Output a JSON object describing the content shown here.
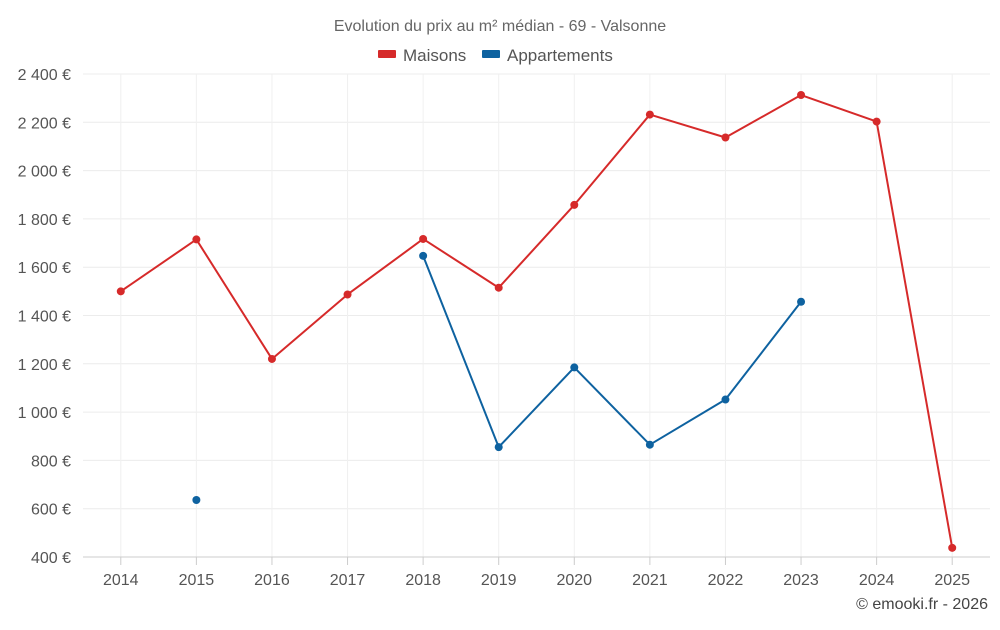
{
  "chart_data": {
    "type": "line",
    "title": "Evolution du prix au m² médian - 69 - Valsonne",
    "categories": [
      "2014",
      "2015",
      "2016",
      "2017",
      "2018",
      "2019",
      "2020",
      "2021",
      "2022",
      "2023",
      "2024",
      "2025"
    ],
    "ylim": [
      400,
      2400
    ],
    "yticks": [
      400,
      600,
      800,
      1000,
      1200,
      1400,
      1600,
      1800,
      2000,
      2200,
      2400
    ],
    "ytick_labels": [
      "400 €",
      "600 €",
      "800 €",
      "1 000 €",
      "1 200 €",
      "1 400 €",
      "1 600 €",
      "1 800 €",
      "2 000 €",
      "2 200 €",
      "2 400 €"
    ],
    "grid": true,
    "legend_position": "top-center",
    "series": [
      {
        "name": "Maisons",
        "color": "#d62a2a",
        "values": [
          1500,
          1715,
          1220,
          1487,
          1717,
          1515,
          1858,
          2232,
          2137,
          2313,
          2203,
          438
        ]
      },
      {
        "name": "Appartements",
        "color": "#0e62a0",
        "values": [
          null,
          636,
          null,
          null,
          1647,
          855,
          1185,
          865,
          1052,
          1457,
          null,
          null
        ]
      }
    ]
  },
  "credit": "© emooki.fr - 2026"
}
